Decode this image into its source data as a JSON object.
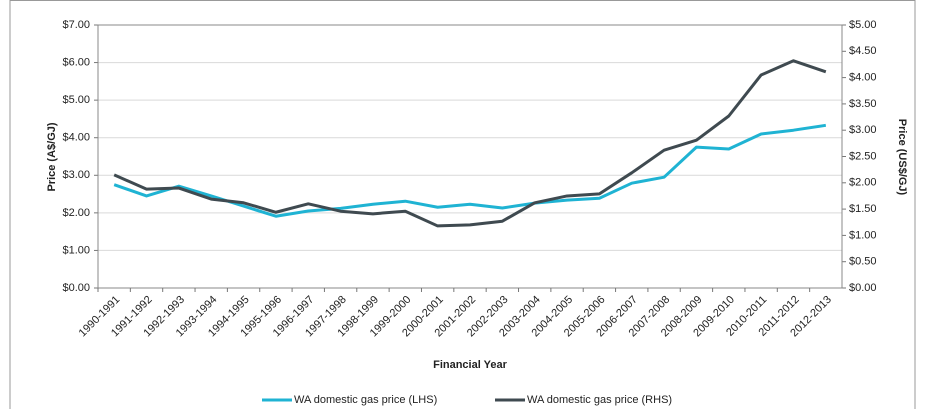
{
  "chart_data": {
    "type": "line",
    "x_label": "Financial Year",
    "y_label": "Price (A$/GJ)",
    "y2_label": "Price (US$/GJ)",
    "categories": [
      "1990-1991",
      "1991-1992",
      "1992-1993",
      "1993-1994",
      "1994-1995",
      "1995-1996",
      "1996-1997",
      "1997-1998",
      "1998-1999",
      "1999-2000",
      "2000-2001",
      "2001-2002",
      "2002-2003",
      "2003-2004",
      "2004-2005",
      "2005-2006",
      "2006-2007",
      "2007-2008",
      "2008-2009",
      "2009-2010",
      "2010-2011",
      "2011-2012",
      "2012-2013"
    ],
    "series": [
      {
        "name": "WA domestic gas price (LHS)",
        "color": "#1fb3d3",
        "axis": "y",
        "values": [
          2.75,
          2.45,
          2.71,
          2.45,
          2.18,
          1.91,
          2.05,
          2.12,
          2.23,
          2.31,
          2.15,
          2.23,
          2.13,
          2.26,
          2.34,
          2.39,
          2.79,
          2.95,
          3.75,
          3.7,
          4.1,
          4.2,
          4.33
        ]
      },
      {
        "name": "WA domestic gas price (RHS)",
        "color": "#3f4a50",
        "axis": "y2",
        "values": [
          2.15,
          1.88,
          1.9,
          1.69,
          1.62,
          1.44,
          1.6,
          1.46,
          1.41,
          1.46,
          1.18,
          1.2,
          1.27,
          1.62,
          1.75,
          1.79,
          2.19,
          2.62,
          2.81,
          3.27,
          4.05,
          4.32,
          4.11
        ]
      }
    ],
    "ylim": [
      0,
      7
    ],
    "yticks": [
      {
        "value": 0,
        "label": "$0.00"
      },
      {
        "value": 1,
        "label": "$1.00"
      },
      {
        "value": 2,
        "label": "$2.00"
      },
      {
        "value": 3,
        "label": "$3.00"
      },
      {
        "value": 4,
        "label": "$4.00"
      },
      {
        "value": 5,
        "label": "$5.00"
      },
      {
        "value": 6,
        "label": "$6.00"
      },
      {
        "value": 7,
        "label": "$7.00"
      }
    ],
    "y2lim": [
      0,
      5
    ],
    "y2ticks": [
      {
        "value": 0,
        "label": "$0.00"
      },
      {
        "value": 0.5,
        "label": "$0.50"
      },
      {
        "value": 1,
        "label": "$1.00"
      },
      {
        "value": 1.5,
        "label": "$1.50"
      },
      {
        "value": 2,
        "label": "$2.00"
      },
      {
        "value": 2.5,
        "label": "$2.50"
      },
      {
        "value": 3,
        "label": "$3.00"
      },
      {
        "value": 3.5,
        "label": "$3.50"
      },
      {
        "value": 4,
        "label": "$4.00"
      },
      {
        "value": 4.5,
        "label": "$4.50"
      },
      {
        "value": 5,
        "label": "$5.00"
      }
    ],
    "grid": true,
    "legend": "bottom"
  }
}
